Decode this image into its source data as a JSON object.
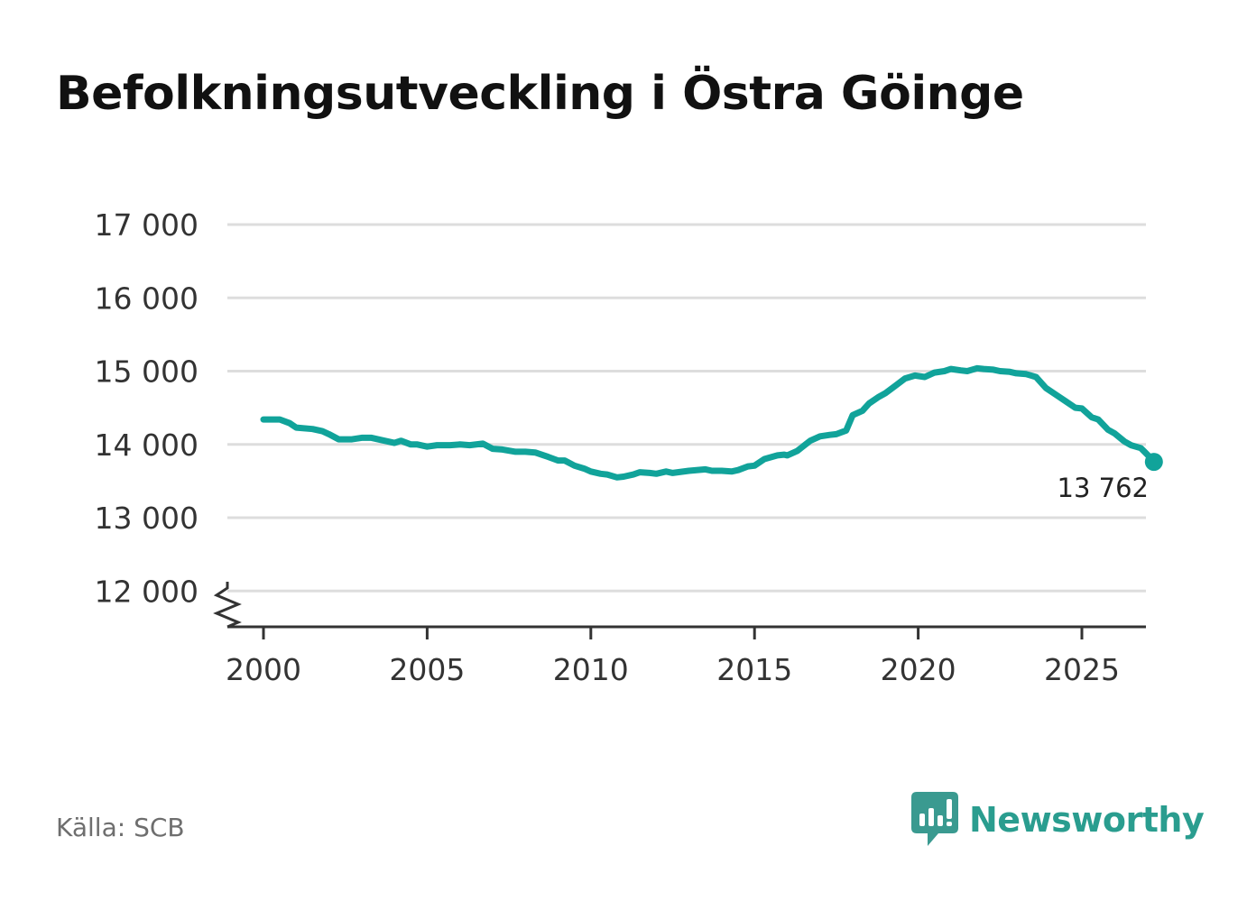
{
  "title": "Befolkningsutveckling i Östra Göinge",
  "source": "Källa: SCB",
  "brand": {
    "name": "Newsworthy",
    "icon": "newsworthy-logo-icon"
  },
  "colors": {
    "line": "#11a39a",
    "grid": "#dddddd",
    "axis": "#333333",
    "text": "#333333",
    "brand": "#2a9d8f"
  },
  "chart_data": {
    "type": "line",
    "title": "Befolkningsutveckling i Östra Göinge",
    "xlabel": "",
    "ylabel": "",
    "xlim": [
      1999.8,
      2027.0
    ],
    "ylim": [
      11500,
      17000
    ],
    "y_ticks": [
      12000,
      13000,
      14000,
      15000,
      16000,
      17000
    ],
    "y_tick_labels": [
      "12 000",
      "13 000",
      "14 000",
      "15 000",
      "16 000",
      "17 000"
    ],
    "x_ticks": [
      2000,
      2005,
      2010,
      2015,
      2020,
      2025
    ],
    "x_tick_labels": [
      "2000",
      "2005",
      "2010",
      "2015",
      "2020",
      "2025"
    ],
    "y_axis_break": true,
    "grid": true,
    "last_value_label": "13 762",
    "series": [
      {
        "values": [
          [
            2000.0,
            14340
          ],
          [
            2000.5,
            14340
          ],
          [
            2000.8,
            14290
          ],
          [
            2001.0,
            14230
          ],
          [
            2001.5,
            14210
          ],
          [
            2001.8,
            14180
          ],
          [
            2002.0,
            14140
          ],
          [
            2002.3,
            14070
          ],
          [
            2002.7,
            14070
          ],
          [
            2003.0,
            14090
          ],
          [
            2003.3,
            14090
          ],
          [
            2003.7,
            14050
          ],
          [
            2004.0,
            14020
          ],
          [
            2004.2,
            14050
          ],
          [
            2004.5,
            14000
          ],
          [
            2004.7,
            14000
          ],
          [
            2005.0,
            13970
          ],
          [
            2005.3,
            13990
          ],
          [
            2005.7,
            13990
          ],
          [
            2006.0,
            14000
          ],
          [
            2006.3,
            13990
          ],
          [
            2006.7,
            14010
          ],
          [
            2007.0,
            13940
          ],
          [
            2007.3,
            13930
          ],
          [
            2007.7,
            13900
          ],
          [
            2008.0,
            13900
          ],
          [
            2008.3,
            13890
          ],
          [
            2008.7,
            13830
          ],
          [
            2009.0,
            13780
          ],
          [
            2009.2,
            13780
          ],
          [
            2009.5,
            13710
          ],
          [
            2009.8,
            13670
          ],
          [
            2010.0,
            13630
          ],
          [
            2010.3,
            13600
          ],
          [
            2010.5,
            13590
          ],
          [
            2010.8,
            13550
          ],
          [
            2011.0,
            13560
          ],
          [
            2011.3,
            13590
          ],
          [
            2011.5,
            13620
          ],
          [
            2011.8,
            13610
          ],
          [
            2012.0,
            13600
          ],
          [
            2012.3,
            13630
          ],
          [
            2012.5,
            13610
          ],
          [
            2013.0,
            13640
          ],
          [
            2013.5,
            13660
          ],
          [
            2013.7,
            13640
          ],
          [
            2014.0,
            13640
          ],
          [
            2014.3,
            13630
          ],
          [
            2014.5,
            13650
          ],
          [
            2014.8,
            13700
          ],
          [
            2015.0,
            13710
          ],
          [
            2015.3,
            13800
          ],
          [
            2015.7,
            13850
          ],
          [
            2015.9,
            13860
          ],
          [
            2016.0,
            13850
          ],
          [
            2016.3,
            13910
          ],
          [
            2016.7,
            14050
          ],
          [
            2017.0,
            14110
          ],
          [
            2017.3,
            14130
          ],
          [
            2017.5,
            14140
          ],
          [
            2017.8,
            14190
          ],
          [
            2018.0,
            14400
          ],
          [
            2018.3,
            14460
          ],
          [
            2018.5,
            14560
          ],
          [
            2018.8,
            14650
          ],
          [
            2019.0,
            14700
          ],
          [
            2019.3,
            14800
          ],
          [
            2019.6,
            14900
          ],
          [
            2019.9,
            14940
          ],
          [
            2020.2,
            14920
          ],
          [
            2020.5,
            14980
          ],
          [
            2020.8,
            15000
          ],
          [
            2021.0,
            15030
          ],
          [
            2021.3,
            15010
          ],
          [
            2021.5,
            15000
          ],
          [
            2021.8,
            15040
          ],
          [
            2022.0,
            15030
          ],
          [
            2022.3,
            15020
          ],
          [
            2022.5,
            15000
          ],
          [
            2022.8,
            14990
          ],
          [
            2023.0,
            14970
          ],
          [
            2023.3,
            14960
          ],
          [
            2023.6,
            14920
          ],
          [
            2023.9,
            14770
          ],
          [
            2024.2,
            14680
          ],
          [
            2024.5,
            14590
          ],
          [
            2024.8,
            14500
          ],
          [
            2025.0,
            14490
          ],
          [
            2025.3,
            14370
          ],
          [
            2025.5,
            14340
          ],
          [
            2025.8,
            14200
          ],
          [
            2026.0,
            14150
          ],
          [
            2026.3,
            14040
          ],
          [
            2026.5,
            13990
          ],
          [
            2026.8,
            13950
          ],
          [
            2027.0,
            13860
          ],
          [
            2027.2,
            13762
          ]
        ]
      }
    ]
  }
}
